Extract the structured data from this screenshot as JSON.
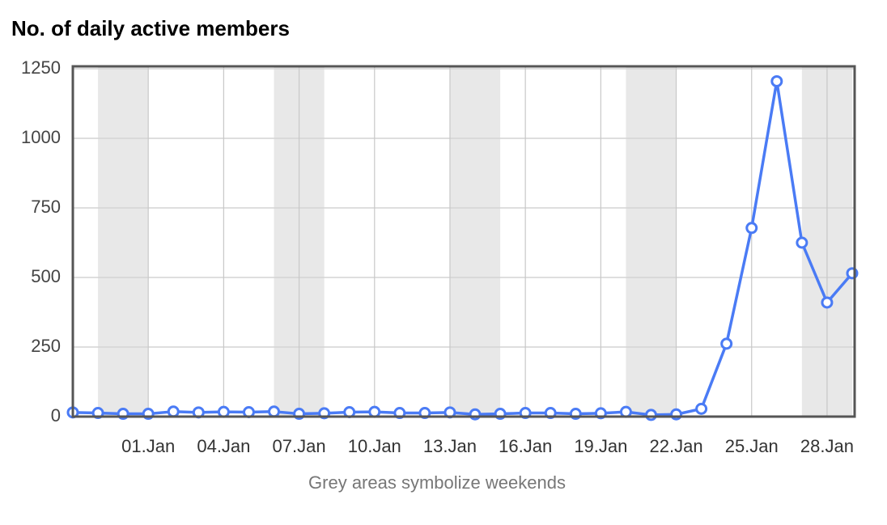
{
  "chart_data": {
    "type": "line",
    "title": "No. of daily active members",
    "x_label": "Grey areas symbolize weekends",
    "categories": [
      null,
      null,
      null,
      "01.Jan",
      null,
      null,
      "04.Jan",
      null,
      null,
      "07.Jan",
      null,
      null,
      "10.Jan",
      null,
      null,
      "13.Jan",
      null,
      null,
      "16.Jan",
      null,
      null,
      "19.Jan",
      null,
      null,
      "22.Jan",
      null,
      null,
      "25.Jan",
      null,
      null,
      "28.Jan",
      null
    ],
    "series": [
      {
        "name": "Daily active members",
        "color": "#4a7bf5",
        "values": [
          15,
          13,
          10,
          10,
          18,
          15,
          17,
          16,
          18,
          10,
          12,
          16,
          17,
          13,
          13,
          15,
          8,
          10,
          13,
          13,
          10,
          12,
          17,
          6,
          8,
          28,
          262,
          678,
          1205,
          625,
          410,
          515
        ]
      }
    ],
    "weekend_bands": [
      {
        "from": 1,
        "to": 3
      },
      {
        "from": 8,
        "to": 10
      },
      {
        "from": 15,
        "to": 17
      },
      {
        "from": 22,
        "to": 24
      },
      {
        "from": 29,
        "to": 31
      }
    ],
    "ylim": [
      0,
      1250
    ],
    "yticks": [
      0,
      250,
      500,
      750,
      1000,
      1250
    ],
    "grid": true
  }
}
